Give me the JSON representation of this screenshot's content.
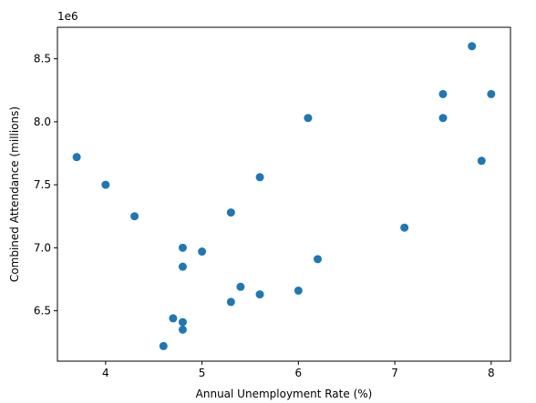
{
  "chart_data": {
    "type": "scatter",
    "title": "",
    "xlabel": "Annual Unemployment Rate (%)",
    "ylabel": "Combined Attendance (millions)",
    "offset_label": "1e6",
    "xlim": [
      3.5,
      8.2
    ],
    "ylim": [
      6.1,
      8.75
    ],
    "x_ticks": [
      4,
      5,
      6,
      7,
      8
    ],
    "x_tick_labels": [
      "4",
      "5",
      "6",
      "7",
      "8"
    ],
    "y_ticks": [
      6.5,
      7.0,
      7.5,
      8.0,
      8.5
    ],
    "y_tick_labels": [
      "6.5",
      "7.0",
      "7.5",
      "8.0",
      "8.5"
    ],
    "grid": false,
    "marker_color": "#1f77b4",
    "points": [
      {
        "x": 3.7,
        "y": 7.72
      },
      {
        "x": 4.0,
        "y": 7.5
      },
      {
        "x": 4.3,
        "y": 7.25
      },
      {
        "x": 4.6,
        "y": 6.22
      },
      {
        "x": 4.7,
        "y": 6.44
      },
      {
        "x": 4.8,
        "y": 7.0
      },
      {
        "x": 4.8,
        "y": 6.85
      },
      {
        "x": 4.8,
        "y": 6.41
      },
      {
        "x": 4.8,
        "y": 6.35
      },
      {
        "x": 5.0,
        "y": 6.97
      },
      {
        "x": 5.3,
        "y": 7.28
      },
      {
        "x": 5.3,
        "y": 6.57
      },
      {
        "x": 5.4,
        "y": 6.69
      },
      {
        "x": 5.6,
        "y": 7.56
      },
      {
        "x": 5.6,
        "y": 6.63
      },
      {
        "x": 6.0,
        "y": 6.66
      },
      {
        "x": 6.1,
        "y": 8.03
      },
      {
        "x": 6.2,
        "y": 6.91
      },
      {
        "x": 7.1,
        "y": 7.16
      },
      {
        "x": 7.5,
        "y": 8.22
      },
      {
        "x": 7.5,
        "y": 8.03
      },
      {
        "x": 7.8,
        "y": 8.6
      },
      {
        "x": 7.9,
        "y": 7.69
      },
      {
        "x": 8.0,
        "y": 8.22
      }
    ]
  }
}
